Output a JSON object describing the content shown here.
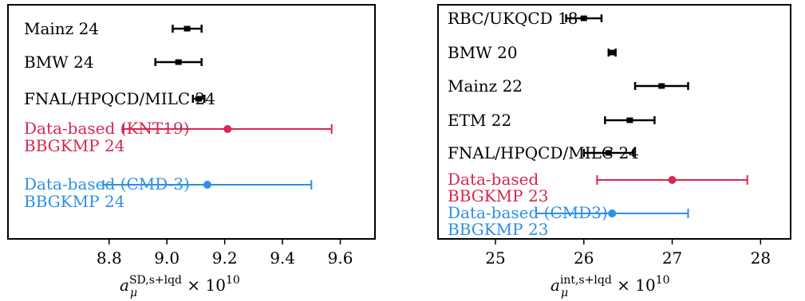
{
  "chart_data": [
    {
      "type": "errorbar",
      "xlabel": {
        "symbol": "a",
        "sup": "SD,s+lqd",
        "sub": "μ",
        "factor": " × 10",
        "exp": "10"
      },
      "xlim": [
        8.45,
        9.72
      ],
      "xticks": [
        8.8,
        9.0,
        9.2,
        9.4,
        9.6
      ],
      "tick_labels": [
        "8.8",
        "9.0",
        "9.2",
        "9.4",
        "9.6"
      ],
      "entries": [
        {
          "label_lines": [
            "Mainz 24"
          ],
          "value": 9.07,
          "err": [
            0.05,
            0.05
          ],
          "color": "#000000",
          "style": "cap"
        },
        {
          "label_lines": [
            "BMW 24"
          ],
          "value": 9.04,
          "err": [
            0.08,
            0.08
          ],
          "color": "#000000",
          "style": "cap"
        },
        {
          "label_lines": [
            "FNAL/HPQCD/MILC 24"
          ],
          "value": 9.11,
          "err": [
            0.02,
            0.02
          ],
          "color": "#000000",
          "style": "cap"
        },
        {
          "label_lines": [
            "Data-based (KNT19)",
            "BBGKMP 24"
          ],
          "value": 9.21,
          "err": [
            0.36,
            0.36
          ],
          "color": "#d6274f",
          "style": "dot"
        },
        {
          "label_lines": [
            "Data-based (CMD-3)",
            "BBGKMP 24"
          ],
          "value": 9.14,
          "err": [
            0.36,
            0.36
          ],
          "color": "#2e8fe6",
          "style": "dot"
        }
      ]
    },
    {
      "type": "errorbar",
      "xlabel": {
        "symbol": "a",
        "sup": "int,s+lqd",
        "sub": "μ",
        "factor": " × 10",
        "exp": "10"
      },
      "xlim": [
        24.35,
        28.34
      ],
      "xticks": [
        25,
        26,
        27,
        28
      ],
      "tick_labels": [
        "25",
        "26",
        "27",
        "28"
      ],
      "entries": [
        {
          "label_lines": [
            "RBC/UKQCD 18"
          ],
          "value": 26.0,
          "err": [
            0.2,
            0.2
          ],
          "color": "#000000",
          "style": "cap"
        },
        {
          "label_lines": [
            "BMW 20"
          ],
          "value": 26.32,
          "err": [
            0.04,
            0.04
          ],
          "color": "#000000",
          "style": "cap"
        },
        {
          "label_lines": [
            "Mainz 22"
          ],
          "value": 26.88,
          "err": [
            0.3,
            0.3
          ],
          "color": "#000000",
          "style": "cap"
        },
        {
          "label_lines": [
            "ETM 22"
          ],
          "value": 26.52,
          "err": [
            0.28,
            0.28
          ],
          "color": "#000000",
          "style": "cap"
        },
        {
          "label_lines": [
            "FNAL/HPQCD/MILC 24"
          ],
          "value": 26.28,
          "err": [
            0.28,
            0.28
          ],
          "color": "#000000",
          "style": "cap"
        },
        {
          "label_lines": [
            "Data-based",
            "BBGKMP 23"
          ],
          "value": 27.0,
          "err": [
            0.85,
            0.85
          ],
          "color": "#d6274f",
          "style": "dot"
        },
        {
          "label_lines": [
            "Data-based (CMD3)",
            "BBGKMP 23"
          ],
          "value": 26.32,
          "err": [
            0.86,
            0.86
          ],
          "color": "#2e8fe6",
          "style": "dot"
        }
      ]
    }
  ]
}
